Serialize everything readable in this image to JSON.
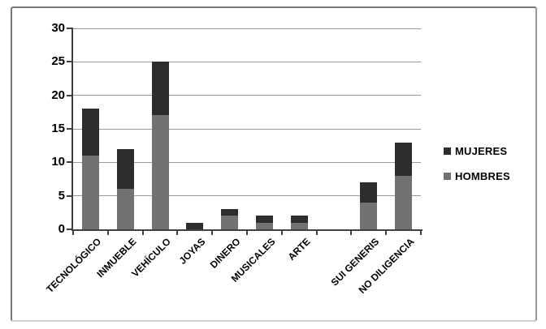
{
  "chart_data": {
    "type": "bar",
    "subtype": "stacked-vertical",
    "title": "",
    "xlabel": "",
    "ylabel": "",
    "categories": [
      "TECNOLÓGICO",
      "INMUEBLE",
      "VEHÍCULO",
      "JOYAS",
      "DINERO",
      "MUSICALES",
      "ARTE",
      "",
      "SUI GENERIS",
      "NO DILIGENCIA"
    ],
    "series": [
      {
        "name": "HOMBRES",
        "color": "#727272",
        "values": [
          11,
          6,
          17,
          0,
          2,
          1,
          1,
          0,
          4,
          8
        ]
      },
      {
        "name": "MUJERES",
        "color": "#2d2d2d",
        "values": [
          7,
          6,
          8,
          1,
          1,
          1,
          1,
          0,
          3,
          5
        ]
      }
    ],
    "totals": [
      18,
      12,
      25,
      1,
      3,
      2,
      2,
      0,
      7,
      13
    ],
    "y_axis": {
      "min": 0,
      "max": 30,
      "step": 5,
      "ticks": [
        "0",
        "5",
        "10",
        "15",
        "20",
        "25",
        "30"
      ]
    },
    "grid": true,
    "legend_position": "right",
    "legend": [
      {
        "label": "MUJERES",
        "color": "#2d2d2d"
      },
      {
        "label": "HOMBRES",
        "color": "#727272"
      }
    ],
    "colors": {
      "gridline": "#9b9b9b",
      "axis": "#3f3f3f",
      "text": "#000000",
      "background": "#ffffff"
    }
  }
}
